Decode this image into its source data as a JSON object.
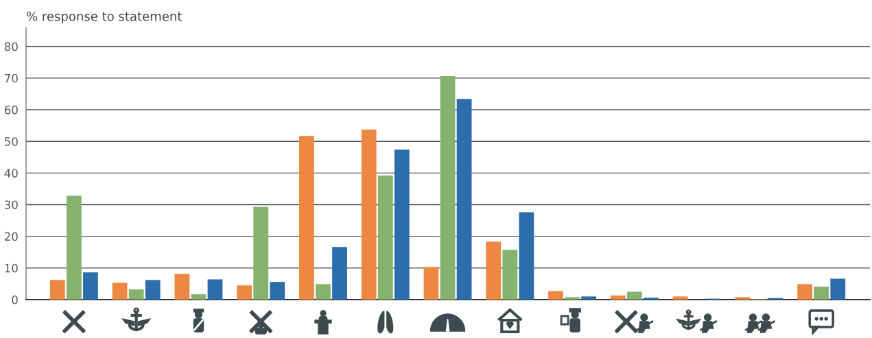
{
  "chart_data": {
    "type": "bar",
    "ylabel": "% response to statement",
    "categories": [
      null,
      null,
      null,
      null,
      null,
      null,
      null,
      null,
      null,
      null,
      null,
      null,
      null
    ],
    "series": [
      {
        "color": "#ed8843",
        "values": [
          6.2,
          5.3,
          8.1,
          4.5,
          51.7,
          53.7,
          10.3,
          18.3,
          2.7,
          1.3,
          1.0,
          0.8,
          4.9
        ]
      },
      {
        "color": "#87b26d",
        "values": [
          32.8,
          3.2,
          1.7,
          29.3,
          4.9,
          39.2,
          70.6,
          15.7,
          0.8,
          2.5,
          0,
          0.2,
          4.1
        ]
      },
      {
        "color": "#2c6eab",
        "values": [
          8.6,
          6.2,
          6.4,
          5.6,
          16.6,
          47.4,
          63.4,
          27.6,
          1.0,
          0.6,
          0.3,
          0.5,
          6.6
        ]
      }
    ],
    "ylim": [
      0,
      86
    ],
    "yticks": [
      0,
      10,
      20,
      30,
      40,
      50,
      60,
      70,
      80
    ],
    "grid": "y"
  }
}
